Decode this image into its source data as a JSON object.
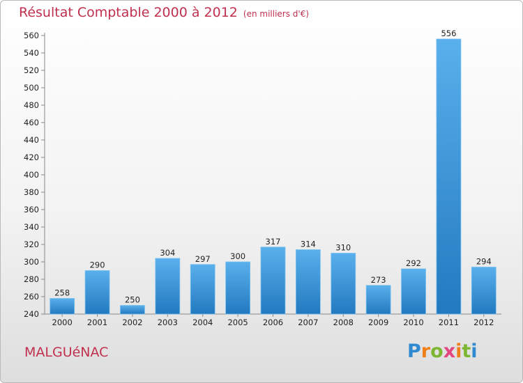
{
  "title": "Résultat Comptable 2000 à 2012",
  "subtitle": "(en milliers d'€)",
  "commune": "MALGUéNAC",
  "logo": "Proxiti",
  "colors": {
    "accent": "#c0304f",
    "bar_light": "#5ab0ec",
    "bar_dark": "#2279bf"
  },
  "chart_data": {
    "type": "bar",
    "categories": [
      "2000",
      "2001",
      "2002",
      "2003",
      "2004",
      "2005",
      "2006",
      "2007",
      "2008",
      "2009",
      "2010",
      "2011",
      "2012"
    ],
    "values": [
      258,
      290,
      250,
      304,
      297,
      300,
      317,
      314,
      310,
      273,
      292,
      556,
      294
    ],
    "yticks": [
      240,
      260,
      280,
      300,
      320,
      340,
      360,
      380,
      400,
      420,
      440,
      460,
      480,
      500,
      520,
      540,
      560
    ],
    "ylim": [
      240,
      560
    ],
    "grid": false,
    "legend": "none"
  }
}
